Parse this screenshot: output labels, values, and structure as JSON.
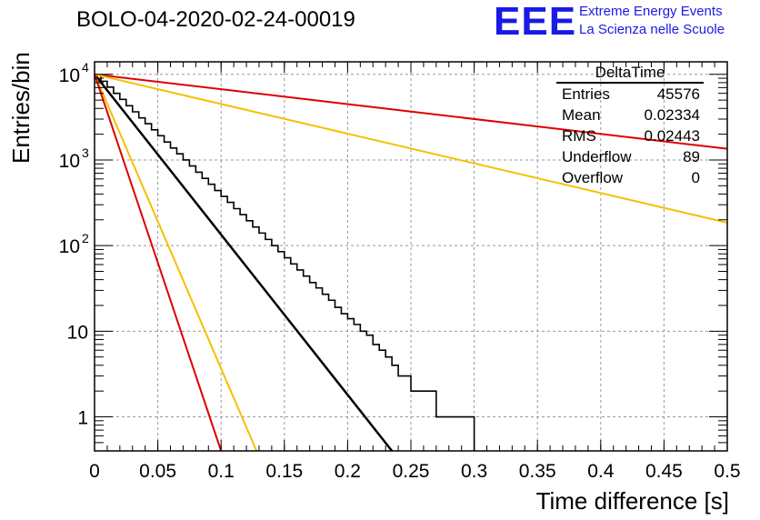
{
  "header": {
    "title": "BOLO-04-2020-02-24-00019",
    "logo": "EEE",
    "org_line1": "Extreme Energy Events",
    "org_line2": "La Scienza nelle Scuole"
  },
  "stats": {
    "name": "DeltaTime",
    "rows": [
      {
        "label": "Entries",
        "value": "45576"
      },
      {
        "label": "Mean",
        "value": "0.02334"
      },
      {
        "label": "RMS",
        "value": "0.02443"
      },
      {
        "label": "Underflow",
        "value": "89"
      },
      {
        "label": "Overflow",
        "value": "0"
      }
    ]
  },
  "chart_data": {
    "type": "line",
    "xlabel": "Time difference [s]",
    "ylabel": "Entries/bin",
    "xlim": [
      0,
      0.5
    ],
    "ylim": [
      0.4,
      14000
    ],
    "yscale": "log",
    "grid": true,
    "x_ticks": [
      "0",
      "0.05",
      "0.1",
      "0.15",
      "0.2",
      "0.25",
      "0.3",
      "0.35",
      "0.4",
      "0.45",
      "0.5"
    ],
    "y_ticks": [
      {
        "value": 1,
        "label": "1"
      },
      {
        "value": 10,
        "label": "10"
      },
      {
        "value": 100,
        "label": "10",
        "exp": "2"
      },
      {
        "value": 1000,
        "label": "10",
        "exp": "3"
      },
      {
        "value": 10000,
        "label": "10",
        "exp": "4"
      }
    ],
    "histogram": {
      "bin_width": 0.005,
      "counts": [
        9800,
        8300,
        7100,
        6000,
        5100,
        4300,
        3650,
        3100,
        2650,
        2250,
        1920,
        1620,
        1380,
        1180,
        1000,
        850,
        720,
        610,
        520,
        440,
        375,
        320,
        270,
        230,
        195,
        165,
        140,
        118,
        100,
        85,
        72,
        61,
        52,
        44,
        37,
        32,
        27,
        23,
        19,
        16,
        14,
        12,
        10,
        9,
        7,
        6,
        5,
        4,
        3,
        3,
        2,
        2,
        2,
        2,
        1,
        1,
        1,
        1,
        1,
        1
      ]
    },
    "lines": [
      {
        "color": "#000000",
        "width": 2.5,
        "points": [
          [
            0,
            10000
          ],
          [
            0.235,
            0.4
          ]
        ]
      },
      {
        "color": "#dd0000",
        "width": 2,
        "points": [
          [
            0,
            10000
          ],
          [
            0.5,
            1350
          ]
        ]
      },
      {
        "color": "#f5c000",
        "width": 2,
        "points": [
          [
            0,
            10000
          ],
          [
            0.5,
            185
          ]
        ]
      },
      {
        "color": "#f5c000",
        "width": 2,
        "points": [
          [
            0,
            10000
          ],
          [
            0.128,
            0.4
          ]
        ]
      },
      {
        "color": "#dd0000",
        "width": 2,
        "points": [
          [
            0,
            10000
          ],
          [
            0.1,
            0.4
          ]
        ]
      }
    ]
  }
}
